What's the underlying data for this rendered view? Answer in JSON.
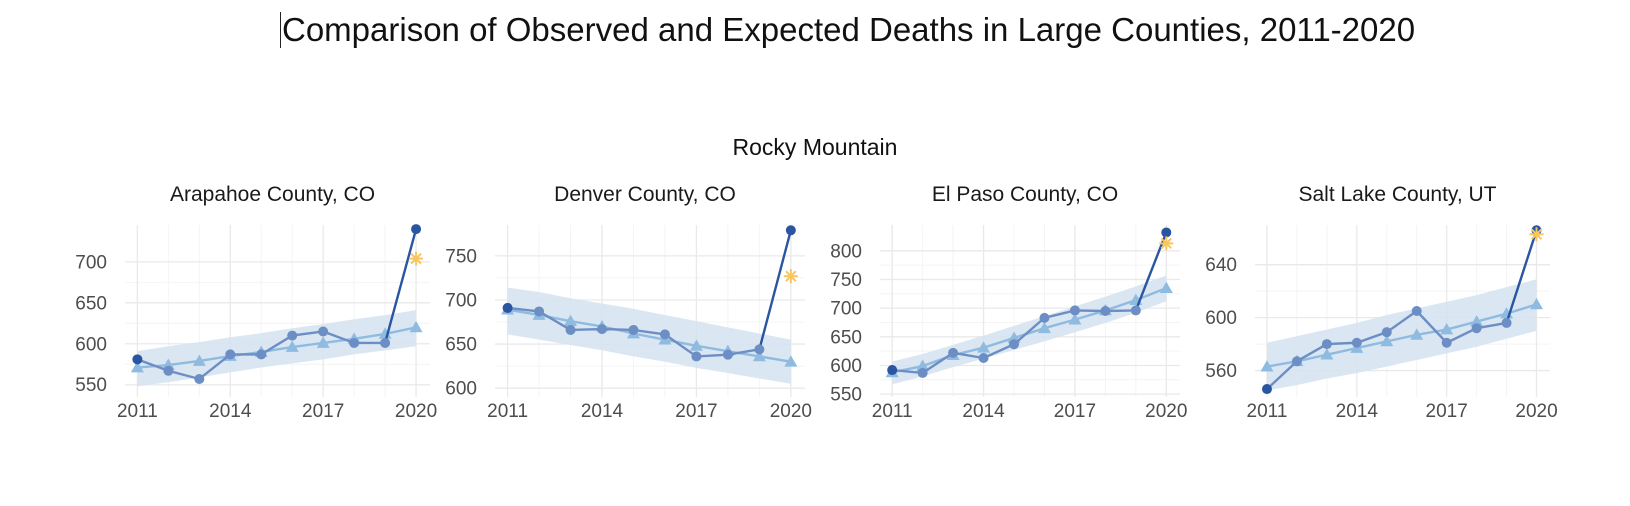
{
  "title": "Comparison of Observed and Expected Deaths in Large Counties, 2011-2020",
  "group_title": "Rocky Mountain",
  "colors": {
    "observed": "#2a55a0",
    "observed_mid": "#6d8ec4",
    "expected": "#8fbbe0",
    "band": "#d3e3f1",
    "excess": "#f7c65f",
    "grid_major": "#e9e9e9",
    "grid_minor": "#f4f4f4",
    "tick_text": "#4d4d4d"
  },
  "chart_data": [
    {
      "type": "line",
      "title": "Arapahoe County, CO",
      "x": [
        2011,
        2012,
        2013,
        2014,
        2015,
        2016,
        2017,
        2018,
        2019,
        2020
      ],
      "x_ticks": [
        2011,
        2014,
        2017,
        2020
      ],
      "y_ticks": [
        550,
        600,
        650,
        700
      ],
      "xlim": [
        2010.6,
        2020.45
      ],
      "ylim": [
        535,
        745
      ],
      "grid": true,
      "series": [
        {
          "role": "observed",
          "values": [
            581,
            567,
            557,
            587,
            587,
            610,
            615,
            601,
            601,
            740
          ]
        },
        {
          "role": "expected",
          "values": [
            571,
            574,
            579,
            585,
            590,
            596,
            601,
            606,
            612,
            620
          ]
        },
        {
          "role": "expected_low",
          "values": [
            548,
            553,
            559,
            565,
            571,
            576,
            581,
            587,
            592,
            597
          ]
        },
        {
          "role": "expected_high",
          "values": [
            591,
            597,
            602,
            608,
            613,
            619,
            624,
            630,
            635,
            641
          ]
        },
        {
          "role": "excess_marker",
          "values": [
            null,
            null,
            null,
            null,
            null,
            null,
            null,
            null,
            null,
            704
          ]
        }
      ]
    },
    {
      "type": "line",
      "title": "Denver County, CO",
      "x": [
        2011,
        2012,
        2013,
        2014,
        2015,
        2016,
        2017,
        2018,
        2019,
        2020
      ],
      "x_ticks": [
        2011,
        2014,
        2017,
        2020
      ],
      "y_ticks": [
        600,
        650,
        700,
        750
      ],
      "xlim": [
        2010.6,
        2020.45
      ],
      "ylim": [
        590,
        785
      ],
      "grid": true,
      "series": [
        {
          "role": "observed",
          "values": [
            691,
            687,
            666,
            667,
            666,
            661,
            636,
            638,
            644,
            779
          ]
        },
        {
          "role": "expected",
          "values": [
            689,
            683,
            676,
            670,
            662,
            655,
            648,
            642,
            636,
            630
          ]
        },
        {
          "role": "expected_low",
          "values": [
            661,
            655,
            649,
            643,
            636,
            630,
            623,
            617,
            611,
            605
          ]
        },
        {
          "role": "expected_high",
          "values": [
            714,
            709,
            702,
            696,
            690,
            683,
            676,
            669,
            662,
            655
          ]
        },
        {
          "role": "excess_marker",
          "values": [
            null,
            null,
            null,
            null,
            null,
            null,
            null,
            null,
            null,
            727
          ]
        }
      ]
    },
    {
      "type": "line",
      "title": "El Paso County, CO",
      "x": [
        2011,
        2012,
        2013,
        2014,
        2015,
        2016,
        2017,
        2018,
        2019,
        2020
      ],
      "x_ticks": [
        2011,
        2014,
        2017,
        2020
      ],
      "y_ticks": [
        550,
        600,
        650,
        700,
        750,
        800
      ],
      "xlim": [
        2010.6,
        2020.45
      ],
      "ylim": [
        545,
        845
      ],
      "grid": true,
      "series": [
        {
          "role": "observed",
          "values": [
            592,
            587,
            622,
            613,
            637,
            683,
            696,
            695,
            696,
            832
          ]
        },
        {
          "role": "expected",
          "values": [
            588,
            599,
            618,
            631,
            648,
            665,
            680,
            696,
            714,
            735
          ]
        },
        {
          "role": "expected_low",
          "values": [
            567,
            581,
            597,
            612,
            627,
            642,
            658,
            674,
            692,
            712
          ]
        },
        {
          "role": "expected_high",
          "values": [
            607,
            620,
            636,
            652,
            669,
            686,
            703,
            720,
            738,
            757
          ]
        },
        {
          "role": "excess_marker",
          "values": [
            null,
            null,
            null,
            null,
            null,
            null,
            null,
            null,
            null,
            813
          ]
        }
      ]
    },
    {
      "type": "line",
      "title": "Salt Lake County, UT",
      "x": [
        2011,
        2012,
        2013,
        2014,
        2015,
        2016,
        2017,
        2018,
        2019,
        2020
      ],
      "x_ticks": [
        2011,
        2014,
        2017,
        2020
      ],
      "y_ticks": [
        560,
        600,
        640
      ],
      "xlim": [
        2010.6,
        2020.45
      ],
      "ylim": [
        540,
        670
      ],
      "grid": true,
      "series": [
        {
          "role": "observed",
          "values": [
            546,
            567,
            580,
            581,
            589,
            605,
            581,
            592,
            596,
            666
          ]
        },
        {
          "role": "expected",
          "values": [
            563,
            567,
            572,
            577,
            582,
            587,
            591,
            597,
            603,
            610
          ]
        },
        {
          "role": "expected_low",
          "values": [
            545,
            549,
            554,
            558,
            563,
            568,
            573,
            578,
            584,
            590
          ]
        },
        {
          "role": "expected_high",
          "values": [
            581,
            586,
            591,
            596,
            602,
            607,
            612,
            617,
            623,
            629
          ]
        },
        {
          "role": "excess_marker",
          "values": [
            null,
            null,
            null,
            null,
            null,
            null,
            null,
            null,
            null,
            663
          ]
        }
      ]
    }
  ]
}
